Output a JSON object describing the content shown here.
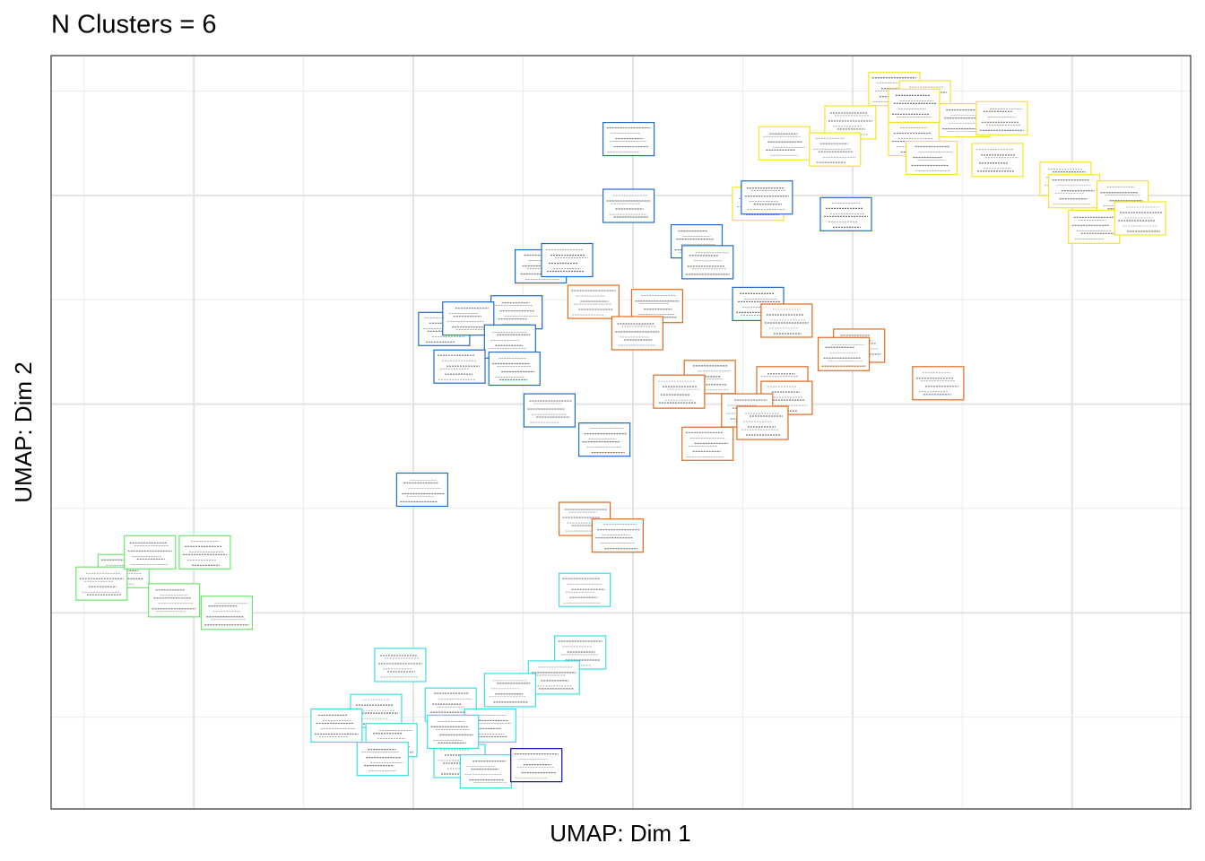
{
  "chart_data": {
    "type": "scatter",
    "title": "N Clusters = 6",
    "x_label": "UMAP: Dim 1",
    "y_label": "UMAP: Dim 2",
    "xlim": [
      -2.65,
      2.54
    ],
    "ylim": [
      -1.94,
      1.67
    ],
    "xgrid": [
      -2,
      -1,
      0,
      1,
      2
    ],
    "xgrid_minor": [
      -2.5,
      -1.5,
      -0.5,
      0.5,
      1.5,
      2.5
    ],
    "ygrid": [
      -1,
      0,
      1
    ],
    "ygrid_minor": [
      -1.5,
      -0.5,
      0.5,
      1.5
    ],
    "grid": true,
    "series": [
      {
        "color": "#f2e52a",
        "x": [
          1.19,
          1.33,
          0.99,
          1.28,
          1.51,
          1.68,
          1.36,
          1.66,
          0.69,
          0.92,
          0.57,
          1.97,
          2.01,
          2.23,
          2.1,
          2.31,
          1.28
        ],
        "values": [
          1.51,
          1.47,
          1.35,
          1.27,
          1.36,
          1.37,
          1.18,
          1.17,
          1.25,
          1.22,
          0.96,
          1.08,
          1.02,
          0.99,
          0.85,
          0.89,
          1.43
        ]
      },
      {
        "color": "#1f6ccc",
        "x": [
          -0.02,
          -0.02,
          0.61,
          0.97,
          0.29,
          0.34,
          -0.42,
          -0.3,
          -0.53,
          -0.86,
          -0.75,
          -0.56,
          -0.79,
          -0.54,
          -0.38,
          -0.13,
          0.57,
          -0.96
        ],
        "values": [
          1.27,
          0.95,
          0.99,
          0.91,
          0.78,
          0.68,
          0.66,
          0.69,
          0.44,
          0.36,
          0.41,
          0.3,
          0.18,
          0.17,
          -0.03,
          -0.17,
          0.48,
          -0.41
        ]
      },
      {
        "color": "#e06a1e",
        "x": [
          -0.18,
          0.11,
          0.02,
          0.7,
          1.03,
          0.96,
          0.35,
          0.21,
          0.68,
          0.7,
          0.52,
          0.59,
          0.34,
          1.39,
          -0.22,
          -0.07
        ],
        "values": [
          0.49,
          0.47,
          0.34,
          0.4,
          0.28,
          0.24,
          0.13,
          0.06,
          0.1,
          0.03,
          -0.03,
          -0.09,
          -0.19,
          0.1,
          -0.55,
          -0.63
        ]
      },
      {
        "color": "#6ee56e",
        "x": [
          -2.32,
          -2.42,
          -2.2,
          -1.95,
          -2.09,
          -1.85
        ],
        "values": [
          -0.8,
          -0.86,
          -0.71,
          -0.71,
          -0.94,
          -1.0
        ]
      },
      {
        "color": "#3fdde6",
        "x": [
          -0.24,
          -0.36,
          -1.06,
          -1.17,
          -1.35,
          -1.1,
          -0.83,
          -0.65,
          -1.14,
          -0.79,
          -0.67,
          -0.56,
          -0.22,
          -0.82
        ],
        "values": [
          -1.19,
          -1.31,
          -1.25,
          -1.47,
          -1.54,
          -1.61,
          -1.44,
          -1.54,
          -1.7,
          -1.71,
          -1.76,
          -1.37,
          -0.89,
          -1.57
        ]
      },
      {
        "color": "#1010a0",
        "x": [
          -0.44
        ],
        "values": [
          -1.73
        ]
      }
    ]
  }
}
